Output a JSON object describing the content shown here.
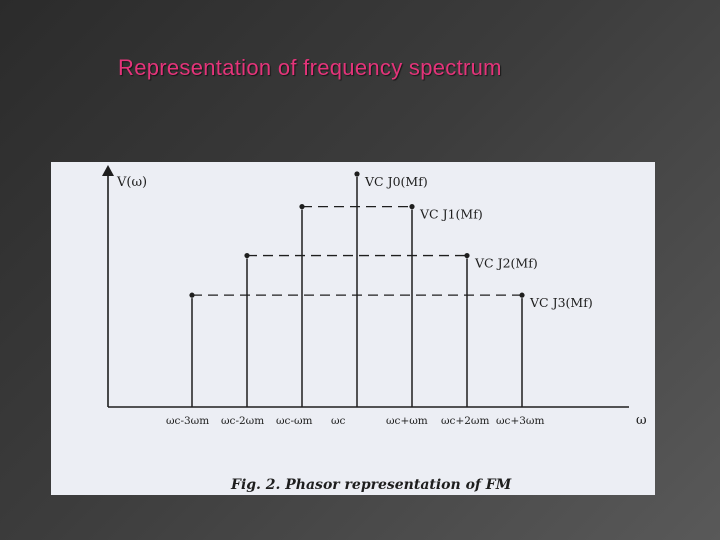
{
  "slide": {
    "title": "Representation of frequency spectrum"
  },
  "diagram": {
    "y_axis_label": "V(ω)",
    "x_axis_label": "ω",
    "caption": "Fig. 2. Phasor representation of FM",
    "components": [
      {
        "offset": -3,
        "label": "ωc-3ωm",
        "amplitude": 0.48,
        "amp_label": ""
      },
      {
        "offset": -2,
        "label": "ωc-2ωm",
        "amplitude": 0.65,
        "amp_label": ""
      },
      {
        "offset": -1,
        "label": "ωc-ωm",
        "amplitude": 0.86,
        "amp_label": ""
      },
      {
        "offset": 0,
        "label": "ωc",
        "amplitude": 1.0,
        "amp_label": "VC J0(Mf)"
      },
      {
        "offset": 1,
        "label": "ωc+ωm",
        "amplitude": 0.86,
        "amp_label": "VC J1(Mf)"
      },
      {
        "offset": 2,
        "label": "ωc+2ωm",
        "amplitude": 0.65,
        "amp_label": "VC J2(Mf)"
      },
      {
        "offset": 3,
        "label": "ωc+3ωm",
        "amplitude": 0.48,
        "amp_label": "VC J3(Mf)"
      }
    ],
    "colors": {
      "line": "#1e1e1e",
      "background": "#eceef4",
      "title": "#e4347a"
    }
  }
}
